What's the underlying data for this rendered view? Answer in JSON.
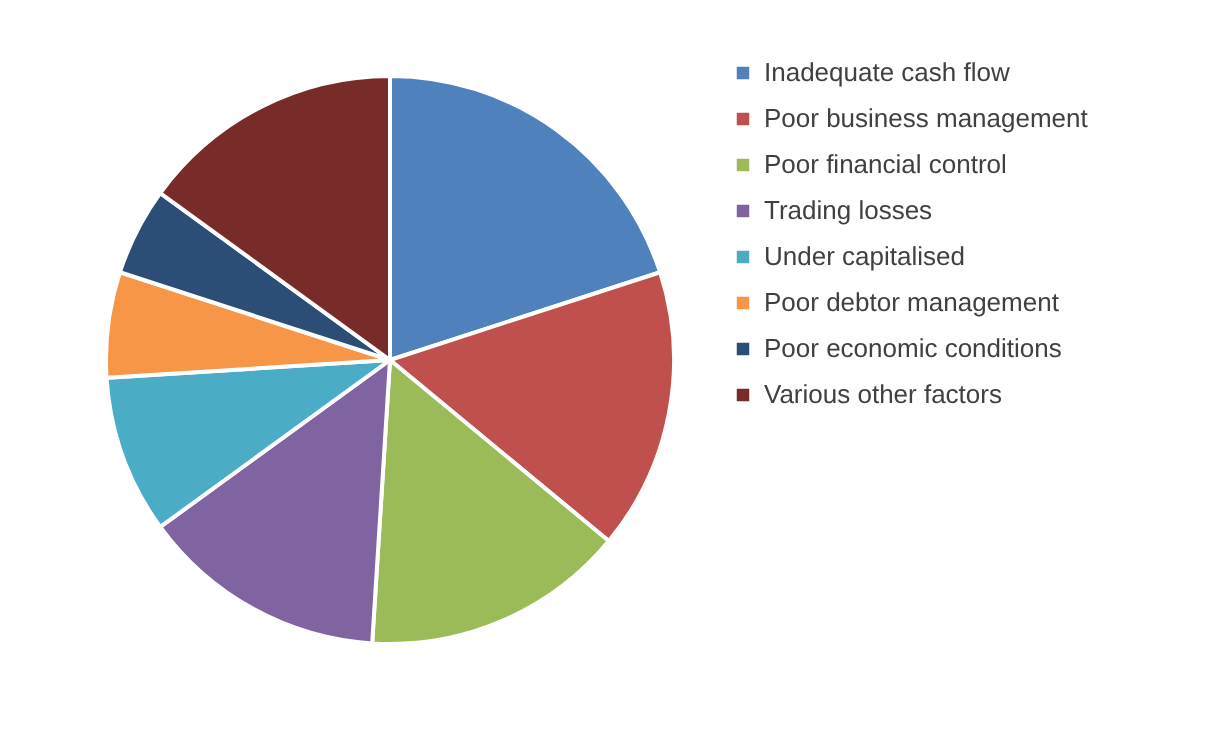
{
  "chart_data": {
    "type": "pie",
    "categories": [
      "Inadequate cash flow",
      "Poor business management",
      "Poor financial control",
      "Trading losses",
      "Under capitalised",
      "Poor debtor management",
      "Poor economic conditions",
      "Various other factors"
    ],
    "values": [
      20,
      16,
      15,
      14,
      9,
      6,
      5,
      15
    ],
    "colors": [
      "#4f81bd",
      "#c0504d",
      "#9bbb59",
      "#8064a2",
      "#4bacc6",
      "#f79646",
      "#2c4d75",
      "#772c2a"
    ],
    "legend": "right"
  }
}
